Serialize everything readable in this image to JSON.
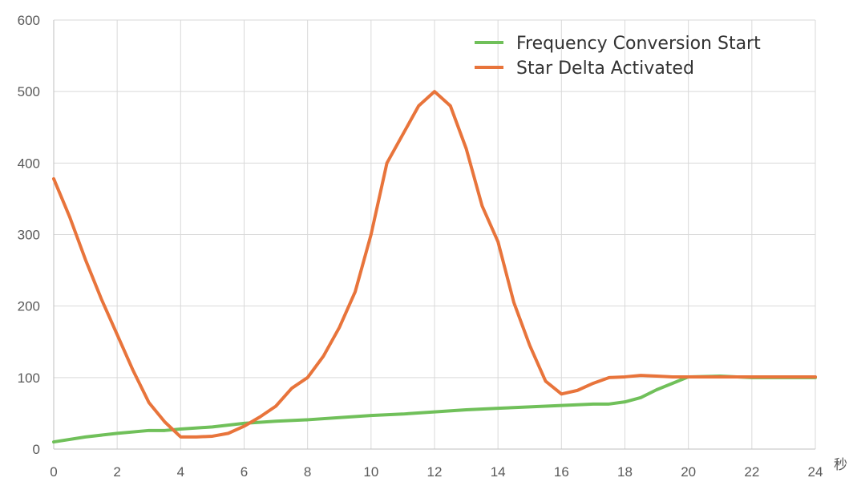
{
  "chart_data": {
    "type": "line",
    "title": "",
    "xlabel": "秒",
    "ylabel": "",
    "xlim": [
      0,
      24
    ],
    "ylim": [
      0,
      600
    ],
    "x_ticks": [
      0,
      2,
      4,
      6,
      8,
      10,
      12,
      14,
      16,
      18,
      20,
      22,
      24
    ],
    "y_ticks": [
      0,
      100,
      200,
      300,
      400,
      500,
      600
    ],
    "grid": true,
    "legend_position": "top-right",
    "series": [
      {
        "name": "Frequency Conversion Start",
        "color": "#70c05a",
        "x": [
          0,
          1,
          2,
          3,
          3.5,
          4,
          5,
          6,
          7,
          8,
          9,
          10,
          11,
          12,
          13,
          14,
          15,
          16,
          17,
          17.5,
          18,
          18.5,
          19,
          19.5,
          20,
          21,
          22,
          23,
          24
        ],
        "y": [
          10,
          17,
          22,
          26,
          26,
          28,
          31,
          36,
          39,
          41,
          44,
          47,
          49,
          52,
          55,
          57,
          59,
          61,
          63,
          63,
          66,
          72,
          83,
          92,
          101,
          102,
          100,
          100,
          100
        ]
      },
      {
        "name": "Star Delta Activated",
        "color": "#e8743b",
        "x": [
          0,
          0.5,
          1,
          1.5,
          2,
          2.5,
          3,
          3.5,
          4,
          4.5,
          5,
          5.5,
          6,
          6.5,
          7,
          7.5,
          8,
          8.5,
          9,
          9.5,
          10,
          10.5,
          11,
          11.5,
          12,
          12.5,
          13,
          13.5,
          14,
          14.5,
          15,
          15.5,
          16,
          16.5,
          17,
          17.5,
          18,
          18.5,
          19,
          19.5,
          20,
          21,
          22,
          23,
          24
        ],
        "y": [
          378,
          325,
          265,
          210,
          160,
          110,
          65,
          38,
          17,
          17,
          18,
          22,
          32,
          45,
          60,
          85,
          100,
          130,
          170,
          220,
          300,
          400,
          440,
          480,
          500,
          480,
          420,
          340,
          290,
          205,
          145,
          95,
          77,
          82,
          92,
          100,
          101,
          103,
          102,
          101,
          101,
          101,
          101,
          101,
          101
        ]
      }
    ]
  }
}
